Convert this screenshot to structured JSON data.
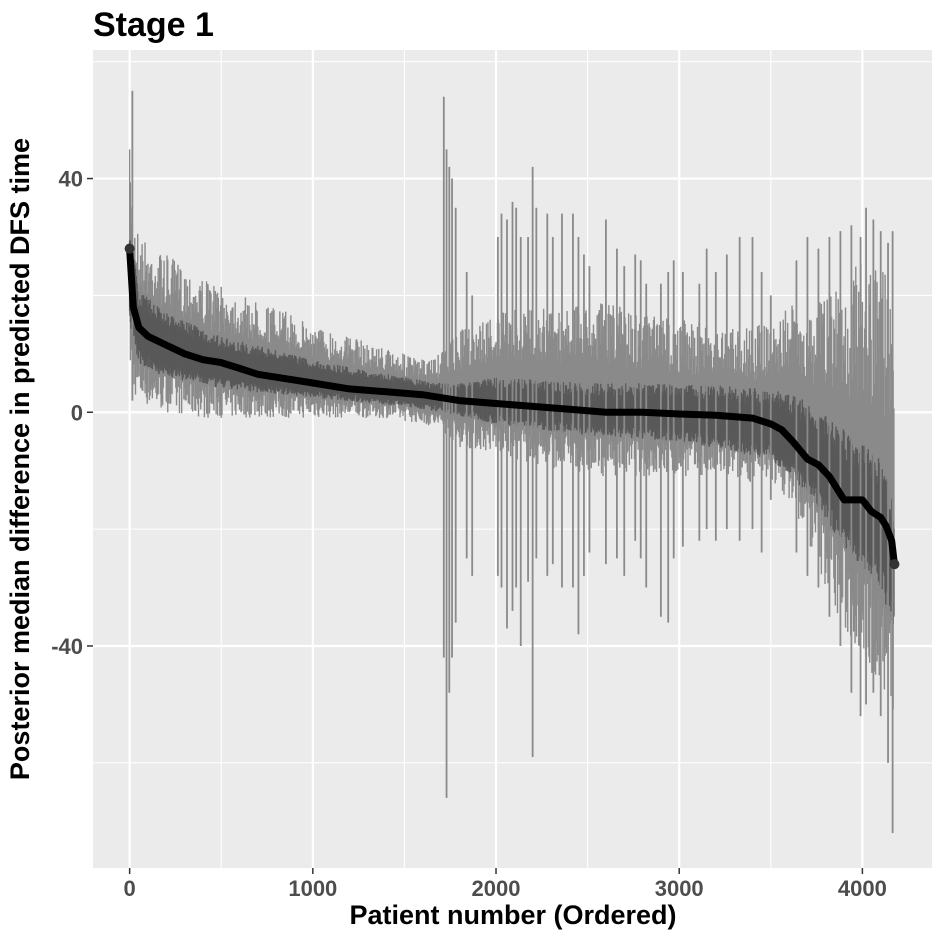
{
  "chart_data": {
    "type": "line",
    "title": "Stage 1",
    "xlabel": "Patient number (Ordered)",
    "ylabel": "Posterior median difference in predicted DFS time",
    "xlim": [
      -200,
      4380
    ],
    "ylim": [
      -78,
      62
    ],
    "x_ticks": [
      0,
      1000,
      2000,
      3000,
      4000
    ],
    "x_tick_labels": [
      "0",
      "1000",
      "2000",
      "3000",
      "4000"
    ],
    "y_ticks": [
      -40,
      0,
      40
    ],
    "y_tick_labels": [
      "-40",
      "0",
      "40"
    ],
    "grid": true,
    "legend": "none",
    "colors": {
      "panel": "#ebebeb",
      "grid": "#ffffff",
      "outer_band": "#8a8a8a",
      "inner_band": "#595959",
      "median_line": "#000000"
    },
    "series": [
      {
        "kind": "median",
        "x": [
          0,
          20,
          50,
          100,
          200,
          300,
          400,
          500,
          600,
          700,
          800,
          900,
          1000,
          1200,
          1400,
          1600,
          1800,
          2000,
          2200,
          2400,
          2600,
          2800,
          3000,
          3200,
          3400,
          3500,
          3560,
          3620,
          3700,
          3760,
          3820,
          3900,
          4000,
          4050,
          4100,
          4130,
          4160,
          4175
        ],
        "y": [
          28,
          18,
          14.5,
          13,
          11.5,
          10,
          9,
          8.5,
          7.5,
          6.5,
          6,
          5.5,
          5,
          4,
          3.5,
          3,
          2,
          1.5,
          1,
          0.5,
          0,
          0,
          -0.3,
          -0.5,
          -1,
          -2,
          -3,
          -5,
          -8,
          -9,
          -11,
          -15,
          -15,
          -17,
          -18,
          -19.5,
          -22,
          -26
        ]
      },
      {
        "kind": "inner_interval",
        "x": [
          0,
          50,
          200,
          500,
          1000,
          1500,
          1700,
          2000,
          2500,
          3000,
          3500,
          3700,
          3900,
          4100,
          4175
        ],
        "lower": [
          15,
          8,
          6,
          4,
          2.5,
          1,
          0,
          -2,
          -4,
          -5,
          -8,
          -14,
          -23,
          -30,
          -38
        ],
        "upper": [
          32,
          21,
          17,
          13,
          9,
          6,
          5,
          6,
          5,
          5,
          4,
          2,
          -3,
          -8,
          -15
        ]
      },
      {
        "kind": "outer_interval",
        "x": [
          0,
          20,
          50,
          100,
          200,
          400,
          600,
          800,
          1000,
          1200,
          1400,
          1600,
          1700,
          1800,
          2000,
          2200,
          2400,
          2600,
          2800,
          3000,
          3200,
          3400,
          3500,
          3600,
          3700,
          3800,
          3900,
          4000,
          4100,
          4175
        ],
        "lower": [
          8,
          3,
          2,
          1,
          0,
          -1,
          -1,
          -1,
          -1,
          -1,
          -1,
          -2,
          -3,
          -6,
          -7,
          -9,
          -10,
          -11,
          -11,
          -11,
          -11,
          -12,
          -12,
          -15,
          -22,
          -30,
          -38,
          -42,
          -48,
          -52
        ],
        "upper": [
          45,
          35,
          31,
          29,
          27,
          23,
          20,
          18,
          15,
          13,
          11,
          9,
          10,
          14,
          17,
          18,
          18,
          19,
          17,
          16,
          15,
          15,
          15,
          18,
          20,
          22,
          24,
          26,
          25,
          22
        ]
      },
      {
        "kind": "outlier_intervals",
        "x": [
          15,
          1715,
          1730,
          1745,
          1760,
          1780,
          1840,
          1870,
          2010,
          2030,
          2060,
          2090,
          2110,
          2135,
          2175,
          2200,
          2220,
          2280,
          2310,
          2360,
          2420,
          2450,
          2480,
          2510,
          2600,
          2660,
          2700,
          2760,
          2790,
          2820,
          2900,
          2940,
          2970,
          3020,
          3110,
          3150,
          3200,
          3260,
          3330,
          3400,
          3450,
          3500,
          3640,
          3700,
          3760,
          3820,
          3880,
          3940,
          3990,
          4020,
          4060,
          4100,
          4140,
          4165
        ],
        "lower": [
          2,
          -42,
          -66,
          -48,
          -42,
          -36,
          -25,
          -28,
          -28,
          -30,
          -37,
          -34,
          -30,
          -40,
          -29,
          -59,
          -25,
          -28,
          -26,
          -30,
          -30,
          -38,
          -28,
          -24,
          -26,
          -25,
          -28,
          -22,
          -25,
          -30,
          -35,
          -36,
          -25,
          -23,
          -22,
          -20,
          -22,
          -20,
          -22,
          -20,
          -24,
          -15,
          -24,
          -28,
          -30,
          -35,
          -40,
          -48,
          -52,
          -50,
          -48,
          -52,
          -60,
          -72
        ],
        "upper": [
          55,
          54,
          45,
          42,
          40,
          35,
          24,
          20,
          30,
          34,
          33,
          36,
          35,
          30,
          30,
          42,
          35,
          34,
          30,
          34,
          34,
          30,
          27,
          25,
          33,
          28,
          25,
          27,
          26,
          22,
          22,
          24,
          26,
          24,
          22,
          28,
          24,
          27,
          30,
          30,
          24,
          20,
          26,
          30,
          28,
          30,
          31,
          32,
          30,
          35,
          33,
          31,
          29,
          31
        ]
      }
    ]
  }
}
